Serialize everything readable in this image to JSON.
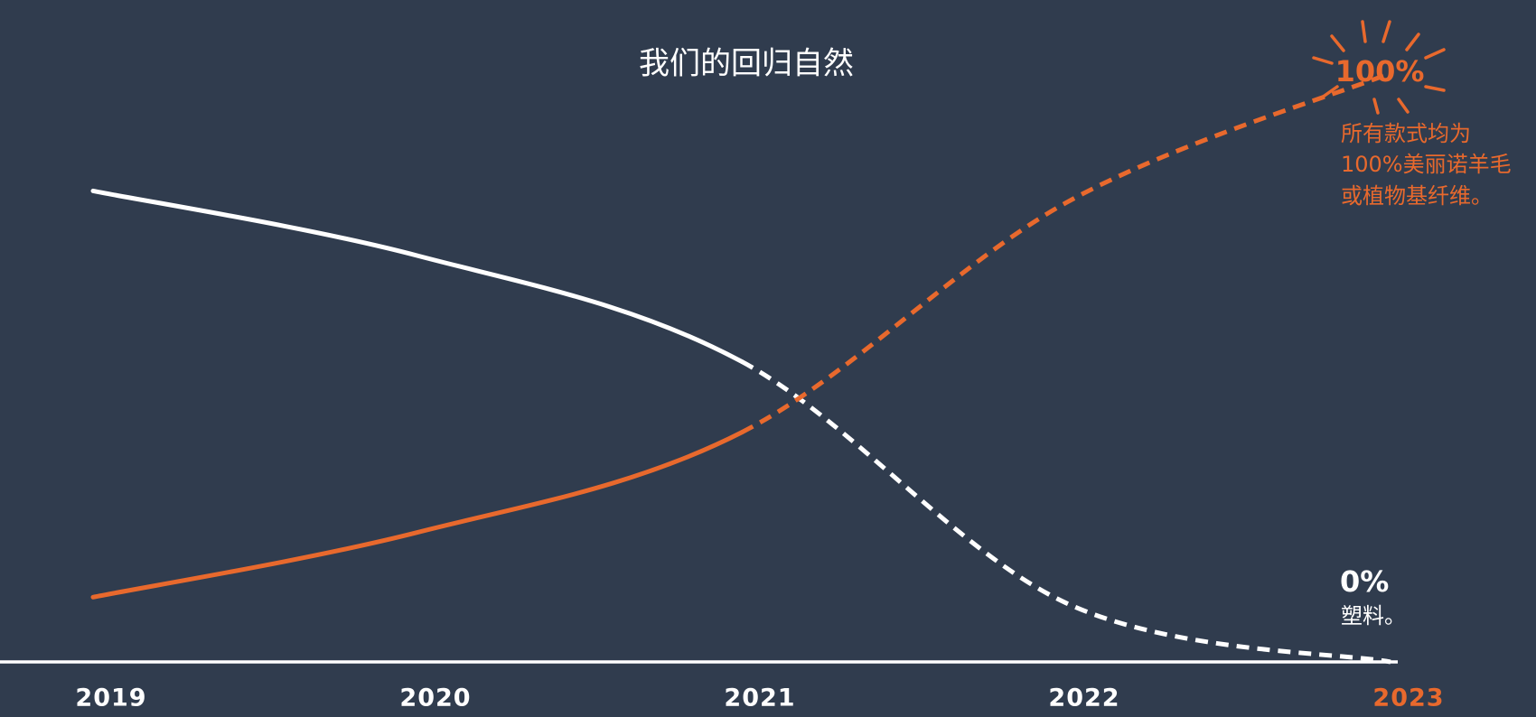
{
  "chart_data": {
    "type": "line",
    "title": "我们的回归自然",
    "categories": [
      "2019",
      "2020",
      "2021",
      "2022",
      "2023"
    ],
    "ylim": [
      0,
      100
    ],
    "projected_from_index": 2,
    "highlight_category_index": 4,
    "highlight_color": "#e8692d",
    "axis_color": "#ffffff",
    "series": [
      {
        "color": "#ffffff",
        "values": [
          80,
          69,
          51,
          10,
          0
        ],
        "value_labels": [
          null,
          null,
          null,
          null,
          "0%"
        ]
      },
      {
        "color": "#e8692d",
        "values": [
          11,
          22,
          39,
          78,
          100
        ],
        "value_labels": [
          null,
          null,
          null,
          null,
          "100%"
        ]
      }
    ],
    "annotations": [
      {
        "color": "#e8692d",
        "lines": [
          "所有款式均为",
          "100%美丽诺羊毛",
          "或植物基纤维。"
        ]
      },
      {
        "color": "#ffffff",
        "lines": [
          "塑料。"
        ]
      }
    ]
  }
}
